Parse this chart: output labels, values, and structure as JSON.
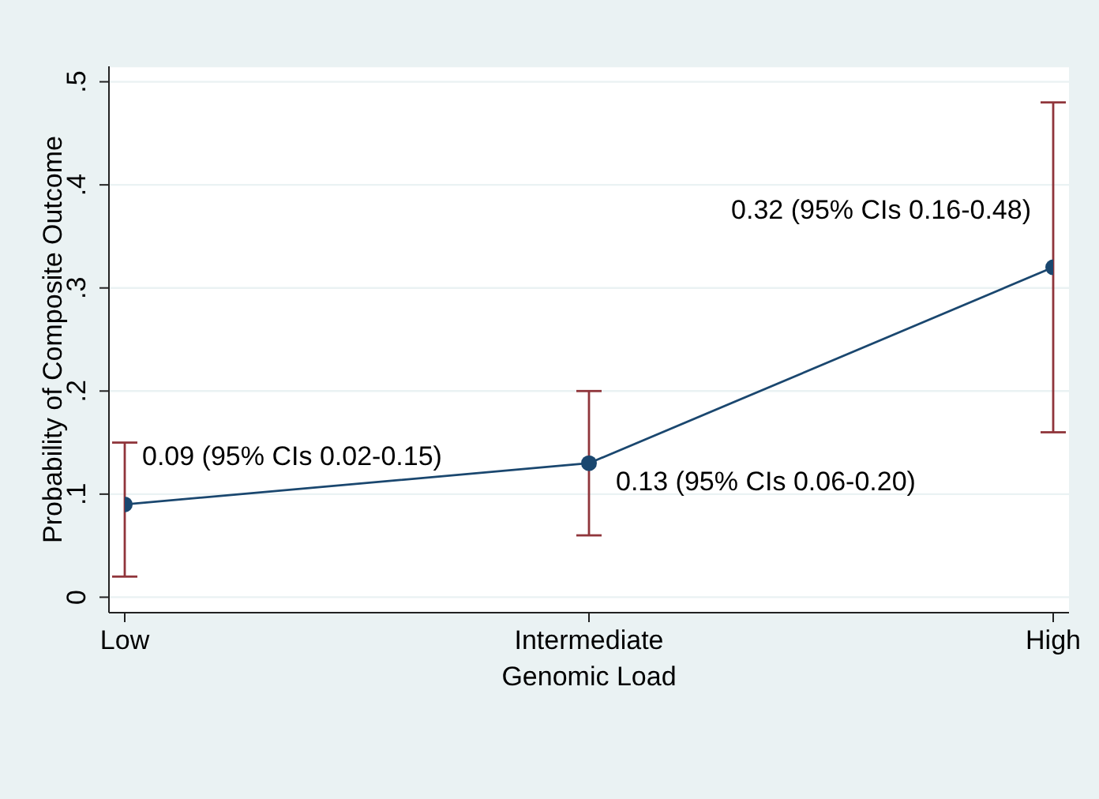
{
  "chart_data": {
    "type": "line",
    "xlabel": "Genomic Load",
    "ylabel": "Probability of Composite Outcome",
    "categories": [
      "Low",
      "Intermediate",
      "High"
    ],
    "series": [
      {
        "color": "#1a476f",
        "values": [
          0.09,
          0.13,
          0.32
        ],
        "errors": [
          [
            0.02,
            0.15
          ],
          [
            0.06,
            0.2
          ],
          [
            0.16,
            0.48
          ]
        ],
        "value_labels": [
          "0.09 (95% CIs 0.02-0.15)",
          "0.13 (95% CIs 0.06-0.20)",
          "0.32 (95% CIs 0.16-0.48)"
        ]
      }
    ],
    "ylim": [
      -0.015,
      0.515
    ],
    "yticks": [
      0,
      {
        "value": 0.1,
        "label": ".1"
      },
      {
        "value": 0.2,
        "label": ".2"
      },
      {
        "value": 0.3,
        "label": ".3"
      },
      {
        "value": 0.4,
        "label": ".4"
      },
      {
        "value": 0.5,
        "label": ".5"
      }
    ],
    "grid": "y",
    "marker": "circle",
    "line_style": "solid"
  }
}
